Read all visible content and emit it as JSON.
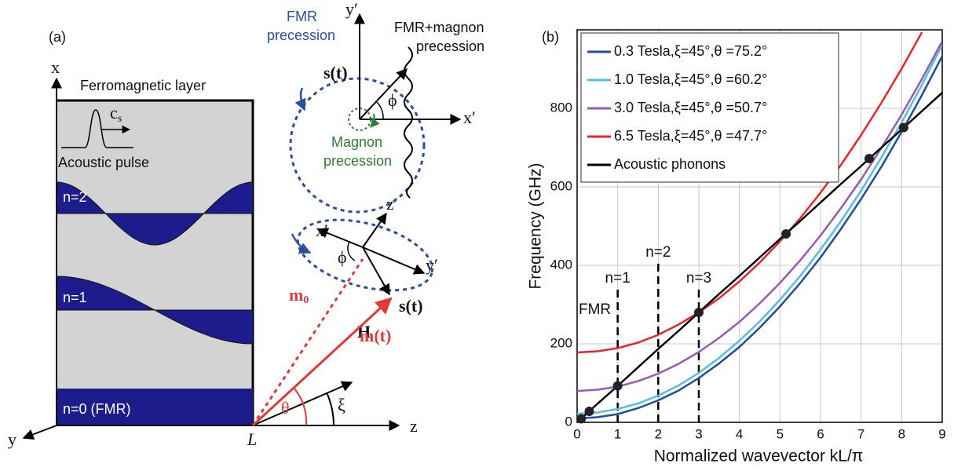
{
  "panel_a": {
    "label": "(a)",
    "axis_x": "x",
    "axis_y": "y",
    "axis_z": "z",
    "origin": "L",
    "layer_title": "Ferromagnetic layer",
    "sound_speed": "c",
    "sound_speed_sub": "s",
    "pulse": "Acoustic pulse",
    "modes": [
      "n=2",
      "n=1",
      "n=0 (FMR)"
    ],
    "fmr_precession": [
      "FMR",
      "precession"
    ],
    "combined_precession": [
      "FMR+magnon",
      "precession"
    ],
    "magnon_precession": [
      "Magnon",
      "precession"
    ],
    "top_axes": {
      "y": "y′",
      "x": "x′",
      "s": "s(t)",
      "angle": "ϕ"
    },
    "lower_axes": {
      "z": "z′",
      "x": "x′",
      "y": "y′",
      "angle": "ϕ",
      "s": "s(t)"
    },
    "m0": "m",
    "m0_sub": "0",
    "mt": "m(t)",
    "field": "H",
    "theta": "θ",
    "xi": "ξ"
  },
  "chart_data": {
    "type": "line",
    "panel_label": "(b)",
    "x_label": "Normalized wavevector kL/π",
    "y_label": "Frequency (GHz)",
    "x": [
      0,
      0.5,
      1,
      1.5,
      2,
      2.5,
      3,
      3.5,
      4,
      4.5,
      5,
      5.5,
      6,
      6.5,
      7,
      7.5,
      8,
      8.5,
      9
    ],
    "series": [
      {
        "name": "0.3 Tesla,ξ=45°,θ =75.2°",
        "color": "#1f4e9c",
        "values": [
          10,
          13,
          21,
          36,
          56,
          81,
          113,
          150,
          192,
          241,
          295,
          355,
          420,
          492,
          569,
          651,
          740,
          834,
          933
        ]
      },
      {
        "name": "1.0 Tesla,ξ=45°,θ =60.2°",
        "color": "#55c0dc",
        "values": [
          22,
          25,
          34,
          48,
          68,
          94,
          126,
          164,
          208,
          257,
          312,
          373,
          440,
          512,
          590,
          675,
          764,
          860,
          962
        ]
      },
      {
        "name": "3.0 Tesla,ξ=45°,θ =50.7°",
        "color": "#9b59b6",
        "values": [
          80,
          83,
          91,
          105,
          124,
          149,
          179,
          215,
          256,
          303,
          355,
          413,
          476,
          545,
          619,
          699,
          784,
          875,
          971
        ]
      },
      {
        "name": "6.5 Tesla,ξ=45°,θ =47.7°",
        "color": "#e8262a",
        "values": [
          178,
          181,
          189,
          203,
          223,
          249,
          280,
          316,
          359,
          407,
          461,
          520,
          585,
          655,
          732,
          814,
          901,
          994,
          null
        ]
      },
      {
        "name": "Acoustic phonons",
        "color": "#000000",
        "values": [
          0,
          47,
          93,
          140,
          187,
          233,
          280,
          327,
          373,
          420,
          467,
          513,
          560,
          607,
          653,
          700,
          746,
          793,
          840
        ]
      }
    ],
    "crossings": {
      "x": [
        0.1,
        0.3,
        1,
        3,
        5.15,
        7.2,
        8.05
      ],
      "values": [
        9,
        28,
        93,
        280,
        480,
        672,
        751
      ],
      "color": "#222222"
    },
    "annotations": [
      {
        "text": "FMR",
        "x": 0
      },
      {
        "text": "n=1",
        "x": 1
      },
      {
        "text": "n=2",
        "x": 2
      },
      {
        "text": "n=3",
        "x": 3
      }
    ],
    "xlim": [
      0,
      9
    ],
    "ylim": [
      0,
      1000
    ],
    "xticks": [
      0,
      1,
      2,
      3,
      4,
      5,
      6,
      7,
      8,
      9
    ],
    "yticks": [
      0,
      200,
      400,
      600,
      800
    ],
    "grid": true,
    "legend": "upper left"
  }
}
